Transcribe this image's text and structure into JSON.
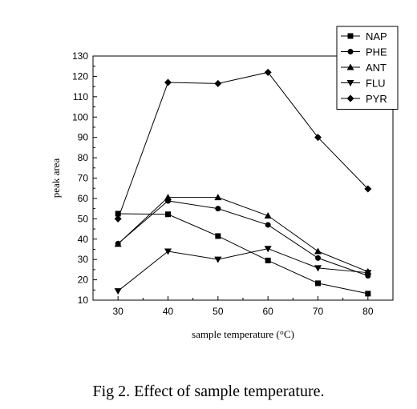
{
  "caption": "Fig 2. Effect of sample temperature.",
  "chart_data": {
    "type": "line",
    "title": "",
    "xlabel": "sample temperature (°C)",
    "ylabel": "peak area",
    "x": [
      30,
      40,
      50,
      60,
      70,
      80
    ],
    "xlim": [
      25,
      85
    ],
    "ylim": [
      10,
      130
    ],
    "xticks": [
      30,
      40,
      50,
      60,
      70,
      80
    ],
    "yticks": [
      10,
      20,
      30,
      40,
      50,
      60,
      70,
      80,
      90,
      100,
      110,
      120,
      130
    ],
    "grid": false,
    "legend_position": "top-right",
    "series": [
      {
        "name": "NAP",
        "marker": "square",
        "values": [
          52.5,
          52.2,
          41.5,
          29.5,
          18.3,
          13.2
        ]
      },
      {
        "name": "PHE",
        "marker": "circle",
        "values": [
          37.8,
          58.8,
          55.0,
          47.0,
          30.7,
          22.0
        ]
      },
      {
        "name": "ANT",
        "marker": "triangle-up",
        "values": [
          37.6,
          60.5,
          60.5,
          51.5,
          34.0,
          24.0
        ]
      },
      {
        "name": "FLU",
        "marker": "triangle-down",
        "values": [
          14.5,
          34.0,
          30.0,
          35.3,
          25.8,
          23.5
        ]
      },
      {
        "name": "PYR",
        "marker": "diamond",
        "values": [
          50.0,
          117.0,
          116.5,
          122.0,
          90.0,
          64.7
        ]
      }
    ]
  }
}
